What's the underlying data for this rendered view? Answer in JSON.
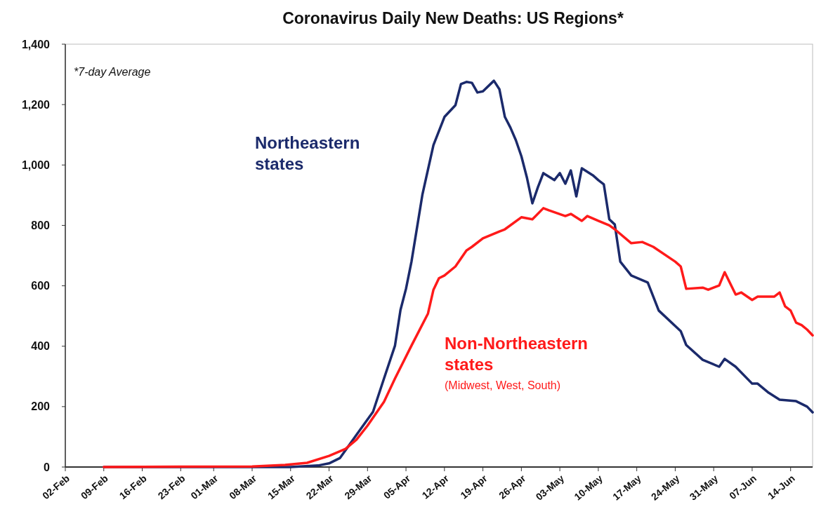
{
  "chart_data": {
    "type": "line",
    "title": "Coronavirus Daily New Deaths: US Regions*",
    "annotations": [
      "*7-day Average",
      "(Midwest, West, South)"
    ],
    "legend": false,
    "grid": false,
    "line_style": "solid",
    "marker": "none",
    "xlim": [
      "--02-02",
      "--06-18"
    ],
    "xticks": [
      {
        "value": "--02-02",
        "label": "02-Feb"
      },
      {
        "value": "--02-09",
        "label": "09-Feb"
      },
      {
        "value": "--02-16",
        "label": "16-Feb"
      },
      {
        "value": "--02-23",
        "label": "23-Feb"
      },
      {
        "value": "--03-01",
        "label": "01-Mar"
      },
      {
        "value": "--03-08",
        "label": "08-Mar"
      },
      {
        "value": "--03-15",
        "label": "15-Mar"
      },
      {
        "value": "--03-22",
        "label": "22-Mar"
      },
      {
        "value": "--03-29",
        "label": "29-Mar"
      },
      {
        "value": "--04-05",
        "label": "05-Apr"
      },
      {
        "value": "--04-12",
        "label": "12-Apr"
      },
      {
        "value": "--04-19",
        "label": "19-Apr"
      },
      {
        "value": "--04-26",
        "label": "26-Apr"
      },
      {
        "value": "--05-03",
        "label": "03-May"
      },
      {
        "value": "--05-10",
        "label": "10-May"
      },
      {
        "value": "--05-17",
        "label": "17-May"
      },
      {
        "value": "--05-24",
        "label": "24-May"
      },
      {
        "value": "--05-31",
        "label": "31-May"
      },
      {
        "value": "--06-07",
        "label": "07-Jun"
      },
      {
        "value": "--06-14",
        "label": "14-Jun"
      }
    ],
    "ylim": [
      0,
      1400
    ],
    "yticks": [
      {
        "value": 0,
        "label": "0"
      },
      {
        "value": 200,
        "label": "200"
      },
      {
        "value": 400,
        "label": "400"
      },
      {
        "value": 600,
        "label": "600"
      },
      {
        "value": 800,
        "label": "800"
      },
      {
        "value": 1000,
        "label": "1,000"
      },
      {
        "value": 1200,
        "label": "1,200"
      },
      {
        "value": 1400,
        "label": "1,400"
      }
    ],
    "series": [
      {
        "name": "Northeastern states",
        "color": "#1b2a6b",
        "x": [
          "--02-09",
          "--03-15",
          "--03-20",
          "--03-22",
          "--03-24",
          "--03-27",
          "--03-30",
          "--04-01",
          "--04-03",
          "--04-04",
          "--04-05",
          "--04-06",
          "--04-08",
          "--04-10",
          "--04-12",
          "--04-14",
          "--04-15",
          "--04-16",
          "--04-17",
          "--04-18",
          "--04-19",
          "--04-21",
          "--04-22",
          "--04-23",
          "--04-24",
          "--04-25",
          "--04-26",
          "--04-27",
          "--04-28",
          "--04-29",
          "--04-30",
          "--05-02",
          "--05-03",
          "--05-04",
          "--05-05",
          "--05-06",
          "--05-07",
          "--05-09",
          "--05-10",
          "--05-11",
          "--05-12",
          "--05-13",
          "--05-14",
          "--05-16",
          "--05-19",
          "--05-21",
          "--05-25",
          "--05-26",
          "--05-29",
          "--06-01",
          "--06-02",
          "--06-04",
          "--06-07",
          "--06-08",
          "--06-10",
          "--06-12",
          "--06-15",
          "--06-17",
          "--06-18"
        ],
        "values": [
          0,
          0,
          5,
          12,
          30,
          107,
          183,
          293,
          402,
          520,
          590,
          680,
          903,
          1066,
          1159,
          1198,
          1268,
          1275,
          1272,
          1240,
          1244,
          1279,
          1251,
          1159,
          1124,
          1082,
          1029,
          959,
          873,
          926,
          973,
          950,
          973,
          938,
          982,
          896,
          989,
          966,
          950,
          936,
          820,
          803,
          680,
          634,
          611,
          518,
          450,
          404,
          355,
          332,
          358,
          332,
          276,
          276,
          246,
          223,
          218,
          200,
          181
        ]
      },
      {
        "name": "Non-Northeastern states",
        "color": "#ff1a1a",
        "x": [
          "--02-09",
          "--03-08",
          "--03-14",
          "--03-18",
          "--03-22",
          "--03-25",
          "--03-27",
          "--03-29",
          "--04-01",
          "--04-03",
          "--04-06",
          "--04-09",
          "--04-10",
          "--04-11",
          "--04-12",
          "--04-14",
          "--04-16",
          "--04-17",
          "--04-19",
          "--04-22",
          "--04-23",
          "--04-26",
          "--04-28",
          "--04-30",
          "--05-01",
          "--05-04",
          "--05-05",
          "--05-07",
          "--05-08",
          "--05-10",
          "--05-12",
          "--05-13",
          "--05-16",
          "--05-18",
          "--05-20",
          "--05-24",
          "--05-25",
          "--05-26",
          "--05-29",
          "--05-30",
          "--06-01",
          "--06-02",
          "--06-04",
          "--06-05",
          "--06-07",
          "--06-08",
          "--06-11",
          "--06-12",
          "--06-13",
          "--06-14",
          "--06-15",
          "--06-16",
          "--06-17",
          "--06-18"
        ],
        "values": [
          0,
          2,
          7,
          14,
          37,
          60,
          91,
          137,
          216,
          293,
          402,
          508,
          587,
          625,
          634,
          664,
          717,
          729,
          757,
          780,
          787,
          827,
          820,
          857,
          850,
          831,
          838,
          815,
          831,
          815,
          800,
          787,
          741,
          745,
          729,
          680,
          664,
          590,
          594,
          587,
          601,
          645,
          571,
          578,
          553,
          564,
          564,
          578,
          532,
          518,
          478,
          470,
          455,
          436
        ]
      }
    ]
  }
}
